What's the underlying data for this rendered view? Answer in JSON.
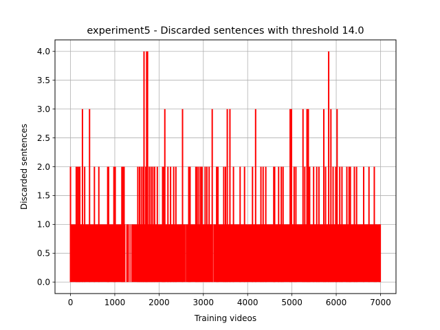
{
  "chart_data": {
    "type": "line",
    "title": "experiment5 - Discarded sentences with threshold 14.0",
    "xlabel": "Training videos",
    "ylabel": "Discarded sentences",
    "xlim": [
      -350,
      7350
    ],
    "ylim": [
      -0.2,
      4.2
    ],
    "xticks": [
      0,
      1000,
      2000,
      3000,
      4000,
      5000,
      6000,
      7000
    ],
    "xtick_labels": [
      "0",
      "1000",
      "2000",
      "3000",
      "4000",
      "5000",
      "6000",
      "7000"
    ],
    "yticks": [
      0.0,
      0.5,
      1.0,
      1.5,
      2.0,
      2.5,
      3.0,
      3.5,
      4.0
    ],
    "ytick_labels": [
      "0.0",
      "0.5",
      "1.0",
      "1.5",
      "2.0",
      "2.5",
      "3.0",
      "3.5",
      "4.0"
    ],
    "grid": true,
    "line_color": "#ff0000",
    "x_extent": [
      0,
      7010
    ],
    "baseline_band": {
      "value_range": [
        0,
        1
      ],
      "gaps": [
        [
          1240,
          1300
        ],
        [
          1320,
          1370
        ],
        [
          2585,
          2610
        ],
        [
          3190,
          3225
        ]
      ]
    },
    "spikes": [
      {
        "x": 0,
        "y": 2
      },
      {
        "x": 130,
        "y": 2
      },
      {
        "x": 160,
        "y": 2
      },
      {
        "x": 190,
        "y": 2
      },
      {
        "x": 210,
        "y": 2
      },
      {
        "x": 270,
        "y": 3
      },
      {
        "x": 320,
        "y": 2
      },
      {
        "x": 430,
        "y": 3
      },
      {
        "x": 540,
        "y": 2
      },
      {
        "x": 640,
        "y": 2
      },
      {
        "x": 840,
        "y": 2
      },
      {
        "x": 860,
        "y": 2
      },
      {
        "x": 980,
        "y": 2
      },
      {
        "x": 1010,
        "y": 2
      },
      {
        "x": 1160,
        "y": 2
      },
      {
        "x": 1180,
        "y": 2
      },
      {
        "x": 1210,
        "y": 2
      },
      {
        "x": 1290,
        "y": 1
      },
      {
        "x": 1520,
        "y": 2
      },
      {
        "x": 1560,
        "y": 2
      },
      {
        "x": 1600,
        "y": 2
      },
      {
        "x": 1640,
        "y": 2
      },
      {
        "x": 1660,
        "y": 4
      },
      {
        "x": 1700,
        "y": 2
      },
      {
        "x": 1720,
        "y": 4
      },
      {
        "x": 1740,
        "y": 4
      },
      {
        "x": 1780,
        "y": 2
      },
      {
        "x": 1820,
        "y": 2
      },
      {
        "x": 1860,
        "y": 2
      },
      {
        "x": 1900,
        "y": 2
      },
      {
        "x": 1960,
        "y": 2
      },
      {
        "x": 2080,
        "y": 2
      },
      {
        "x": 2100,
        "y": 2
      },
      {
        "x": 2130,
        "y": 3
      },
      {
        "x": 2200,
        "y": 2
      },
      {
        "x": 2260,
        "y": 2
      },
      {
        "x": 2330,
        "y": 2
      },
      {
        "x": 2380,
        "y": 2
      },
      {
        "x": 2530,
        "y": 3
      },
      {
        "x": 2670,
        "y": 2
      },
      {
        "x": 2700,
        "y": 2
      },
      {
        "x": 2830,
        "y": 2
      },
      {
        "x": 2860,
        "y": 2
      },
      {
        "x": 2900,
        "y": 2
      },
      {
        "x": 2940,
        "y": 2
      },
      {
        "x": 2970,
        "y": 2
      },
      {
        "x": 3040,
        "y": 2
      },
      {
        "x": 3080,
        "y": 2
      },
      {
        "x": 3130,
        "y": 2
      },
      {
        "x": 3200,
        "y": 3
      },
      {
        "x": 3300,
        "y": 2
      },
      {
        "x": 3330,
        "y": 2
      },
      {
        "x": 3460,
        "y": 2
      },
      {
        "x": 3500,
        "y": 2
      },
      {
        "x": 3540,
        "y": 3
      },
      {
        "x": 3600,
        "y": 3
      },
      {
        "x": 3680,
        "y": 2
      },
      {
        "x": 3830,
        "y": 2
      },
      {
        "x": 3930,
        "y": 2
      },
      {
        "x": 4110,
        "y": 2
      },
      {
        "x": 4180,
        "y": 3
      },
      {
        "x": 4300,
        "y": 2
      },
      {
        "x": 4350,
        "y": 2
      },
      {
        "x": 4410,
        "y": 2
      },
      {
        "x": 4590,
        "y": 2
      },
      {
        "x": 4610,
        "y": 2
      },
      {
        "x": 4700,
        "y": 2
      },
      {
        "x": 4760,
        "y": 2
      },
      {
        "x": 4800,
        "y": 2
      },
      {
        "x": 4960,
        "y": 3
      },
      {
        "x": 4990,
        "y": 3
      },
      {
        "x": 5050,
        "y": 2
      },
      {
        "x": 5090,
        "y": 2
      },
      {
        "x": 5250,
        "y": 3
      },
      {
        "x": 5290,
        "y": 2
      },
      {
        "x": 5340,
        "y": 3
      },
      {
        "x": 5370,
        "y": 3
      },
      {
        "x": 5400,
        "y": 2
      },
      {
        "x": 5490,
        "y": 2
      },
      {
        "x": 5560,
        "y": 2
      },
      {
        "x": 5610,
        "y": 2
      },
      {
        "x": 5720,
        "y": 3
      },
      {
        "x": 5760,
        "y": 2
      },
      {
        "x": 5830,
        "y": 4
      },
      {
        "x": 5880,
        "y": 3
      },
      {
        "x": 5930,
        "y": 2
      },
      {
        "x": 5990,
        "y": 2
      },
      {
        "x": 6020,
        "y": 3
      },
      {
        "x": 6080,
        "y": 2
      },
      {
        "x": 6130,
        "y": 2
      },
      {
        "x": 6240,
        "y": 2
      },
      {
        "x": 6290,
        "y": 2
      },
      {
        "x": 6320,
        "y": 2
      },
      {
        "x": 6410,
        "y": 2
      },
      {
        "x": 6460,
        "y": 2
      },
      {
        "x": 6620,
        "y": 2
      },
      {
        "x": 6740,
        "y": 2
      },
      {
        "x": 6860,
        "y": 2
      },
      {
        "x": 6900,
        "y": 1
      },
      {
        "x": 6980,
        "y": 1
      }
    ]
  }
}
